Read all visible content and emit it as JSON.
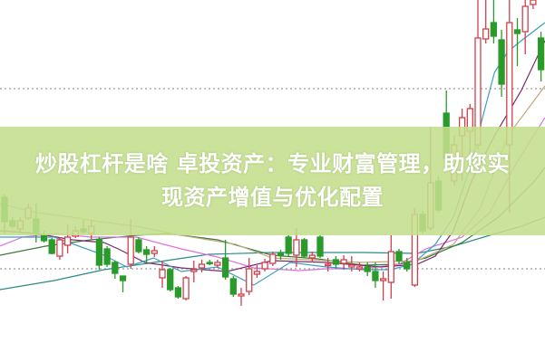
{
  "banner": {
    "line1": "炒股杠杆是啥 卓投资产：专业财富管理，助您实",
    "line2": "现资产增值与优化配置"
  },
  "chart_data": {
    "type": "candlestick",
    "title": "",
    "xlabel": "",
    "ylabel": "",
    "xlim": [
      -0.6,
      68.5
    ],
    "ylim": [
      0,
      40
    ],
    "grid": "two dotted horizontal reference lines",
    "reference_lines": [
      30.2,
      10.3
    ],
    "colors": {
      "up": "#d0404a",
      "down": "#2a9a2a",
      "reference": "#9a9a9a",
      "banner": "#c4de8c"
    },
    "candles_columns": [
      "i",
      "open",
      "high",
      "low",
      "close"
    ],
    "candles": [
      [
        0,
        18.2,
        18.5,
        14.2,
        15.5
      ],
      [
        1,
        15.6,
        16.0,
        14.8,
        15.0
      ],
      [
        2,
        14.7,
        16.0,
        14.4,
        15.6
      ],
      [
        3,
        15.9,
        17.5,
        15.7,
        17.0
      ],
      [
        4,
        15.8,
        17.5,
        13.2,
        14.2
      ],
      [
        5,
        14.0,
        14.5,
        13.2,
        13.4
      ],
      [
        6,
        13.5,
        13.7,
        11.9,
        12.0
      ],
      [
        7,
        11.7,
        13.8,
        11.3,
        13.5
      ],
      [
        8,
        12.9,
        15.2,
        12.0,
        13.8
      ],
      [
        9,
        13.9,
        15.0,
        13.7,
        14.5
      ],
      [
        10,
        14.7,
        15.7,
        14.2,
        14.4
      ],
      [
        11,
        14.2,
        15.7,
        13.5,
        15.0
      ],
      [
        12,
        13.5,
        13.8,
        10.2,
        10.7
      ],
      [
        13,
        12.5,
        12.8,
        10.5,
        10.8
      ],
      [
        14,
        11.0,
        11.2,
        9.2,
        9.8
      ],
      [
        15,
        9.5,
        9.5,
        7.7,
        9.0
      ],
      [
        16,
        10.8,
        15.8,
        10.3,
        13.8
      ],
      [
        17,
        13.5,
        13.8,
        12.0,
        12.2
      ],
      [
        18,
        12.4,
        12.8,
        10.8,
        11.9
      ],
      [
        19,
        12.0,
        12.8,
        11.6,
        12.3
      ],
      [
        20,
        9.3,
        11.2,
        8.2,
        10.2
      ],
      [
        21,
        10.2,
        10.4,
        7.8,
        8.0
      ],
      [
        22,
        8.2,
        8.4,
        7.0,
        7.2
      ],
      [
        23,
        7.0,
        9.5,
        6.8,
        9.3
      ],
      [
        24,
        10.0,
        11.2,
        8.8,
        10.2
      ],
      [
        25,
        10.4,
        11.3,
        9.9,
        10.8
      ],
      [
        26,
        11.0,
        11.3,
        10.7,
        10.9
      ],
      [
        27,
        10.7,
        11.3,
        10.4,
        11.0
      ],
      [
        28,
        11.5,
        13.5,
        9.1,
        9.4
      ],
      [
        29,
        9.2,
        9.5,
        7.2,
        7.5
      ],
      [
        30,
        7.3,
        8.2,
        6.2,
        7.5
      ],
      [
        31,
        7.8,
        11.5,
        7.4,
        10.3
      ],
      [
        32,
        9.7,
        10.7,
        9.3,
        10.0
      ],
      [
        33,
        10.3,
        11.4,
        10.0,
        11.0
      ],
      [
        34,
        10.9,
        12.2,
        10.6,
        11.9
      ],
      [
        35,
        12.0,
        12.4,
        11.3,
        11.8
      ],
      [
        36,
        13.8,
        14.0,
        11.7,
        12.0
      ],
      [
        37,
        11.8,
        14.8,
        10.5,
        13.5
      ],
      [
        38,
        13.5,
        13.7,
        11.5,
        11.7
      ],
      [
        39,
        11.5,
        12.2,
        11.0,
        11.8
      ],
      [
        40,
        13.8,
        14.0,
        11.5,
        11.7
      ],
      [
        41,
        10.7,
        11.5,
        10.0,
        10.8
      ],
      [
        42,
        11.3,
        11.7,
        10.3,
        10.8
      ],
      [
        43,
        10.9,
        11.8,
        10.2,
        11.3
      ],
      [
        44,
        10.5,
        11.7,
        10.0,
        10.7
      ],
      [
        45,
        10.3,
        11.0,
        10.0,
        10.5
      ],
      [
        46,
        10.5,
        11.0,
        9.5,
        10.0
      ],
      [
        47,
        10.0,
        11.0,
        8.2,
        9.0
      ],
      [
        48,
        9.0,
        10.0,
        6.8,
        9.2
      ],
      [
        49,
        8.8,
        14.0,
        7.0,
        12.2
      ],
      [
        50,
        12.2,
        12.5,
        10.8,
        11.2
      ],
      [
        51,
        11.0,
        11.5,
        10.0,
        10.3
      ],
      [
        52,
        8.5,
        17.0,
        8.3,
        16.3
      ],
      [
        53,
        16.3,
        16.7,
        14.2,
        14.5
      ],
      [
        54,
        14.8,
        26.0,
        14.5,
        19.8
      ],
      [
        55,
        20.0,
        20.5,
        16.5,
        16.8
      ],
      [
        56,
        27.5,
        30.0,
        21.5,
        22.5
      ],
      [
        57,
        20.0,
        25.0,
        19.5,
        24.0
      ],
      [
        58,
        25.0,
        28.0,
        20.0,
        27.0
      ],
      [
        59,
        25.5,
        28.5,
        21.0,
        28.0
      ],
      [
        60,
        24.0,
        40.0,
        23.5,
        35.8
      ],
      [
        61,
        35.7,
        40.0,
        35.2,
        36.8
      ],
      [
        62,
        37.5,
        40.0,
        35.2,
        36.0
      ],
      [
        63,
        35.6,
        36.7,
        29.3,
        30.7
      ],
      [
        64,
        24.0,
        40.0,
        16.5,
        37.5
      ],
      [
        65,
        36.7,
        38.0,
        32.7,
        36.3
      ],
      [
        66,
        36.5,
        40.0,
        34.0,
        39.3
      ],
      [
        67,
        39.5,
        40.0,
        39.0,
        40.0
      ],
      [
        68,
        35.8,
        36.5,
        31.0,
        32.3
      ]
    ],
    "moving_averages": [
      {
        "color": "#2a8a8a",
        "points": [
          [
            -0.6,
            8.0
          ],
          [
            6.3,
            9.0
          ],
          [
            12.6,
            10.2
          ],
          [
            18.9,
            11.0
          ],
          [
            25.9,
            11.9
          ],
          [
            33.9,
            12.1
          ],
          [
            45.4,
            12.1
          ],
          [
            52.3,
            12.0
          ],
          [
            56.9,
            12.8
          ],
          [
            61.5,
            14.0
          ],
          [
            65.5,
            15.0
          ],
          [
            68.5,
            16.0
          ]
        ]
      },
      {
        "color": "#3a7a3a",
        "points": [
          [
            -0.6,
            11.8
          ],
          [
            5.2,
            12.8
          ],
          [
            10.9,
            13.5
          ],
          [
            16.7,
            14.0
          ],
          [
            20.7,
            14.2
          ],
          [
            27.0,
            13.5
          ],
          [
            33.9,
            11.8
          ],
          [
            39.7,
            11.4
          ],
          [
            45.4,
            10.7
          ],
          [
            50.0,
            10.8
          ],
          [
            53.4,
            11.5
          ],
          [
            58.0,
            13.2
          ],
          [
            62.6,
            16.0
          ],
          [
            67.2,
            20.0
          ],
          [
            68.5,
            21.5
          ]
        ]
      },
      {
        "color": "#e070e0",
        "points": [
          [
            -0.6,
            12.8
          ],
          [
            2.3,
            13.8
          ],
          [
            6.3,
            14.2
          ],
          [
            10.9,
            13.8
          ],
          [
            16.7,
            13.8
          ],
          [
            22.4,
            12.5
          ],
          [
            27.0,
            11.6
          ],
          [
            31.6,
            10.4
          ],
          [
            37.4,
            10.1
          ],
          [
            40.8,
            10.3
          ],
          [
            45.4,
            10.3
          ],
          [
            50.0,
            10.8
          ],
          [
            53.4,
            12.5
          ],
          [
            58.0,
            13.8
          ],
          [
            61.5,
            16.5
          ],
          [
            64.9,
            22.0
          ],
          [
            68.5,
            27.0
          ]
        ]
      },
      {
        "color": "#7a2a6a",
        "points": [
          [
            -0.6,
            14.5
          ],
          [
            4.0,
            14.2
          ],
          [
            8.6,
            13.5
          ],
          [
            12.6,
            13.2
          ],
          [
            14.4,
            12.5
          ],
          [
            17.8,
            11.0
          ],
          [
            22.4,
            10.4
          ],
          [
            28.2,
            10.0
          ],
          [
            33.9,
            11.2
          ],
          [
            40.8,
            11.0
          ],
          [
            47.7,
            10.5
          ],
          [
            52.3,
            10.8
          ],
          [
            54.6,
            11.7
          ],
          [
            56.9,
            14.5
          ],
          [
            59.2,
            20.0
          ],
          [
            62.1,
            25.0
          ],
          [
            65.5,
            30.0
          ],
          [
            68.5,
            35.5
          ]
        ]
      },
      {
        "color": "#3aa0c0",
        "points": [
          [
            -0.6,
            13.8
          ],
          [
            6.3,
            13.8
          ],
          [
            12.6,
            11.8
          ],
          [
            15.5,
            10.5
          ],
          [
            18.9,
            11.5
          ],
          [
            22.4,
            10.0
          ],
          [
            27.0,
            10.5
          ],
          [
            31.6,
            8.5
          ],
          [
            36.2,
            11.0
          ],
          [
            40.8,
            10.5
          ],
          [
            45.4,
            10.2
          ],
          [
            48.9,
            10.2
          ],
          [
            51.7,
            10.8
          ],
          [
            54.6,
            13.0
          ],
          [
            56.9,
            16.0
          ],
          [
            59.2,
            22.0
          ],
          [
            60.5,
            26.7
          ],
          [
            62.1,
            32.0
          ],
          [
            63.8,
            34.3
          ],
          [
            65.5,
            35.5
          ],
          [
            68.5,
            37.5
          ]
        ]
      },
      {
        "color": "#c0a878",
        "points": [
          [
            -0.6,
            17.5
          ],
          [
            4.0,
            16.5
          ],
          [
            8.6,
            16.0
          ],
          [
            12.1,
            15.5
          ],
          [
            16.7,
            15.0
          ],
          [
            22.4,
            14.0
          ],
          [
            29.3,
            13.0
          ],
          [
            33.9,
            11.5
          ],
          [
            45.4,
            11.0
          ],
          [
            52.3,
            11.2
          ],
          [
            56.9,
            13.0
          ],
          [
            60.3,
            17.0
          ],
          [
            63.8,
            25.0
          ],
          [
            68.5,
            30.5
          ]
        ]
      }
    ]
  }
}
